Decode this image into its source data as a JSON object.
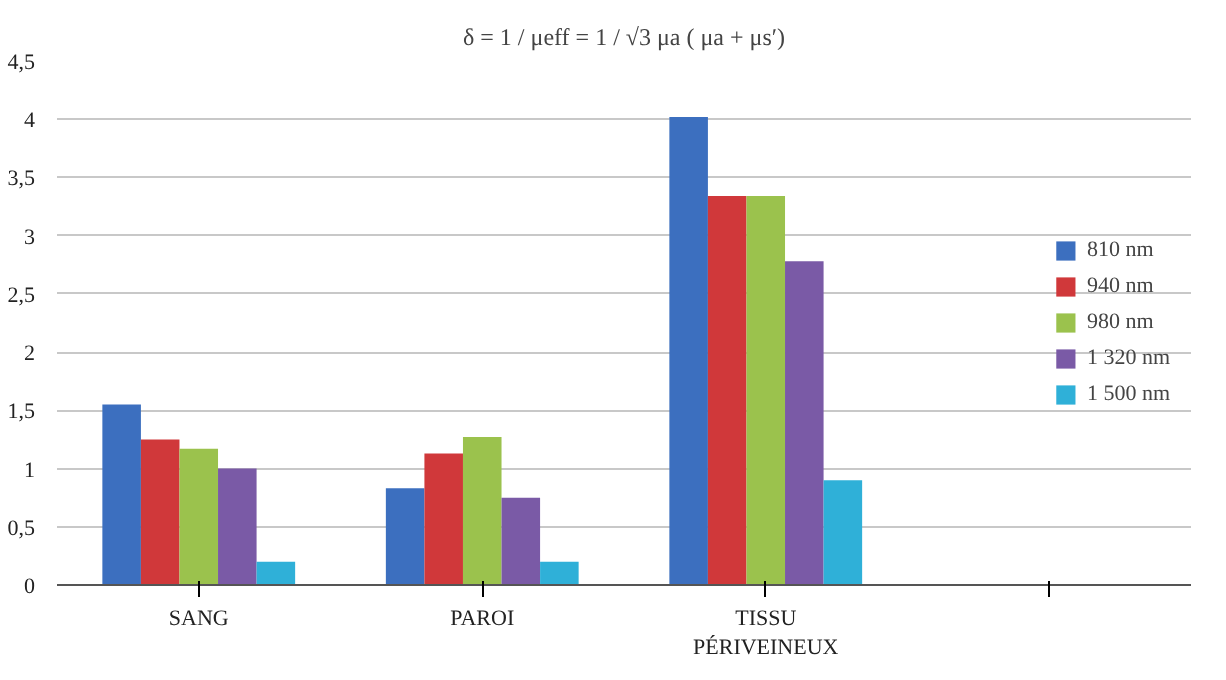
{
  "chart_data": {
    "type": "bar",
    "title": "δ = 1 / μeff = 1 / √3 μa ( μa + μs′)",
    "categories": [
      "SANG",
      "PAROI",
      "TISSU PÉRIVEINEUX",
      null
    ],
    "series": [
      {
        "name": "810 nm",
        "color": "#3c6fbf",
        "values": [
          1.55,
          0.83,
          4.02,
          null
        ]
      },
      {
        "name": "940 nm",
        "color": "#d0383a",
        "values": [
          1.25,
          1.13,
          3.34,
          null
        ]
      },
      {
        "name": "980 nm",
        "color": "#9bc24d",
        "values": [
          1.17,
          1.27,
          3.34,
          null
        ]
      },
      {
        "name": "1 320 nm",
        "color": "#7a5aa6",
        "values": [
          1.0,
          0.75,
          2.78,
          null
        ]
      },
      {
        "name": "1 500 nm",
        "color": "#2fb0d8",
        "values": [
          0.2,
          0.2,
          0.9,
          null
        ]
      }
    ],
    "ylim": [
      0,
      4.5
    ],
    "yticks": [
      0,
      {
        "value": 0.5,
        "label": "0,5"
      },
      1,
      {
        "value": 1.5,
        "label": "1,5"
      },
      2,
      {
        "value": 2.5,
        "label": "2,5"
      },
      3,
      {
        "value": 3.5,
        "label": "3,5"
      },
      4,
      {
        "value": 4.5,
        "label": "4,5"
      }
    ],
    "grid": "y",
    "legend": "right"
  }
}
